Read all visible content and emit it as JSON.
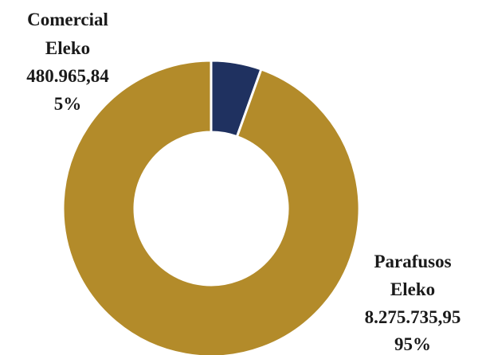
{
  "chart_data": {
    "type": "pie",
    "variant": "donut",
    "title": "",
    "categories": [
      "Comercial Eleko",
      "Parafusos Eleko"
    ],
    "values": [
      480965.84,
      8275735.95
    ],
    "value_labels": [
      "480.965,84",
      "8.275.735,95"
    ],
    "percent_labels": [
      "5%",
      "95%"
    ],
    "colors": [
      "#1f3160",
      "#b38b2a"
    ],
    "legend": "none",
    "labels": [
      {
        "line1": "Comercial",
        "line2": "Eleko"
      },
      {
        "line1": "Parafusos",
        "line2": "Eleko"
      }
    ]
  }
}
